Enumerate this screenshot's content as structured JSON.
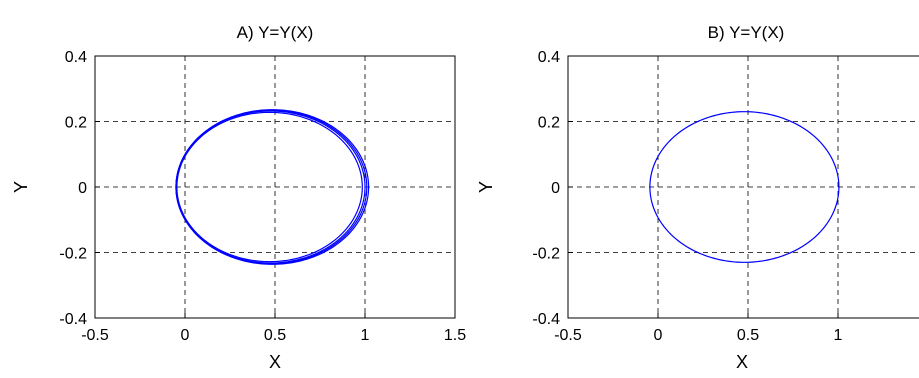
{
  "chart_data": [
    {
      "type": "line",
      "title": "A) Y=Y(X)",
      "xlabel": "X",
      "ylabel": "Y",
      "xlim": [
        -0.5,
        1.5
      ],
      "ylim": [
        -0.4,
        0.4
      ],
      "xticks": [
        "-0.5",
        "0",
        "0.5",
        "1",
        "1.5"
      ],
      "yticks": [
        "-0.4",
        "-0.2",
        "0",
        "0.2",
        "0.4"
      ],
      "grid": true,
      "series": [
        {
          "color": "#0000ff",
          "loops": [
            {
              "x_center": 0.47,
              "x_semi_axis": 0.515,
              "y_semi_axis": 0.228
            },
            {
              "x_center": 0.475,
              "x_semi_axis": 0.525,
              "y_semi_axis": 0.232
            },
            {
              "x_center": 0.48,
              "x_semi_axis": 0.53,
              "y_semi_axis": 0.234
            },
            {
              "x_center": 0.485,
              "x_semi_axis": 0.535,
              "y_semi_axis": 0.236
            }
          ]
        }
      ]
    },
    {
      "type": "line",
      "title": "B) Y=Y(X)",
      "xlabel": "X",
      "ylabel": "Y",
      "xlim": [
        -0.5,
        1.5
      ],
      "ylim": [
        -0.4,
        0.4
      ],
      "xticks": [
        "-0.5",
        "0",
        "0.5",
        "1"
      ],
      "yticks": [
        "-0.4",
        "-0.2",
        "0",
        "0.2",
        "0.4"
      ],
      "grid": true,
      "series": [
        {
          "color": "#0000ff",
          "loops": [
            {
              "x_center": 0.48,
              "x_semi_axis": 0.525,
              "y_semi_axis": 0.23
            }
          ]
        }
      ]
    }
  ]
}
